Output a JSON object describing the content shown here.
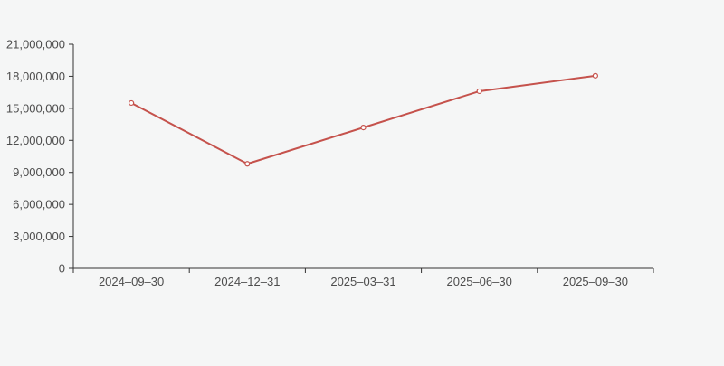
{
  "chart_data": {
    "type": "line",
    "x": [
      "2024–09–30",
      "2024–12–31",
      "2025–03–31",
      "2025–06–30",
      "2025–09–30"
    ],
    "series": [
      {
        "name": "value",
        "values": [
          15500000,
          9800000,
          13200000,
          16600000,
          18050000
        ]
      }
    ],
    "title": "",
    "xlabel": "",
    "ylabel": "",
    "ylim": [
      0,
      21000000
    ],
    "ytick_step": 3000000,
    "ytick_labels": [
      "0",
      "3,000,000",
      "6,000,000",
      "9,000,000",
      "12,000,000",
      "15,000,000",
      "18,000,000",
      "21,000,000"
    ],
    "grid": false,
    "legend": false,
    "marker": "hollow-circle"
  },
  "style": {
    "background": "#f5f6f6",
    "line_color": "#c5524c",
    "marker_fill": "#ffffff",
    "axis_color": "#333333",
    "label_color": "#4d4d4d"
  }
}
